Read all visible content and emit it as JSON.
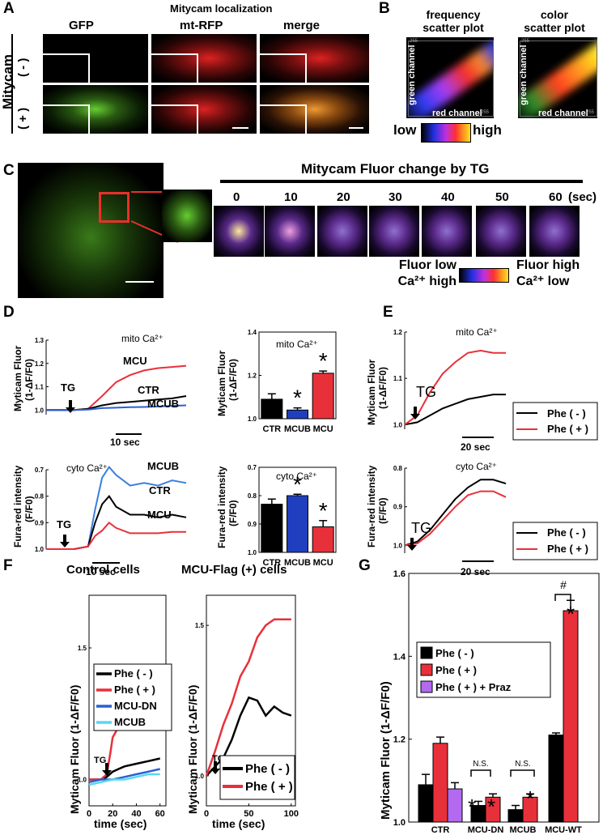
{
  "panelA": {
    "letter": "A",
    "title": "Mitycam localization",
    "col_labels": [
      "GFP",
      "mt-RFP",
      "merge"
    ],
    "row_group": "Mitycam",
    "row_labels": [
      "( - )",
      "( + )"
    ]
  },
  "panelB": {
    "letter": "B",
    "plot1_title": [
      "frequency",
      "scatter plot"
    ],
    "plot2_title": [
      "color",
      "scatter plot"
    ],
    "xlabel": "red channel",
    "ylabel": "green channel",
    "tick_start": "0",
    "tick_end": "255",
    "bar_low": "low",
    "bar_high": "high"
  },
  "panelC": {
    "letter": "C",
    "title": "Mitycam Fluor change by TG",
    "times": [
      "0",
      "10",
      "20",
      "30",
      "40",
      "50",
      "60"
    ],
    "unit": "(sec)",
    "legend_low": [
      "Fluor low",
      "Ca²⁺  high"
    ],
    "legend_high": [
      "Fluor high",
      "Ca²⁺  low"
    ]
  },
  "panelD": {
    "letter": "D",
    "mito_title": "mito Ca²⁺",
    "cyto_title": "cyto Ca²⁺",
    "mito_ylabel": [
      "Myticam Fluor",
      "(1-ΔF/F0)"
    ],
    "cyto_ylabel": [
      "Fura-red intensity",
      "(F/F0)"
    ],
    "tg": "TG",
    "scale_mito": "10 sec",
    "scale_cyto": "10 sec",
    "mito_ticks": [
      "1.0",
      "1.1",
      "1.2",
      "1.3"
    ],
    "cyto_ticks": [
      "1.0",
      "0.9",
      "0.8",
      "0.7"
    ],
    "mito_labels": [
      "MCU",
      "CTR",
      "MCUB"
    ],
    "cyto_labels": [
      "MCUB",
      "CTR",
      "MCU"
    ],
    "bar_mito_ticks": [
      "1.0",
      "1.2",
      "1.4"
    ],
    "bar_cyto_ticks": [
      "1.0",
      "0.9",
      "0.8",
      "0.7"
    ],
    "bar_cats": [
      "CTR",
      "MCUB",
      "MCU"
    ]
  },
  "panelE": {
    "letter": "E",
    "mito_title": "mito Ca²⁺",
    "cyto_title": "cyto Ca²⁺",
    "mito_ylabel": [
      "Myticam Fluor",
      "(1-ΔF/F0)"
    ],
    "cyto_ylabel": [
      "Fura-red intensity",
      "(F/F0)"
    ],
    "tg": "TG",
    "scale": "20 sec",
    "mito_ticks": [
      "1.0",
      "1.1",
      "1.2"
    ],
    "cyto_ticks": [
      "1.0",
      "0.9",
      "0.8"
    ],
    "legend": [
      "Phe ( - )",
      "Phe ( + )"
    ]
  },
  "panelF": {
    "letter": "F",
    "left_title": "Control cells",
    "right_title": "MCU-Flag (+) cells",
    "ylabel": "Myticam Fluor (1-ΔF/F0)",
    "xlabel": "time (sec)",
    "tg": "TG",
    "left_xticks": [
      "0",
      "20",
      "40",
      "60"
    ],
    "right_xticks": [
      "0",
      "50",
      "100"
    ],
    "left_yticks": [
      "1.0",
      "1.5"
    ],
    "right_yticks": [
      "1.0",
      "1.5"
    ],
    "left_legend": [
      "Phe ( - )",
      "Phe ( + )",
      "MCU-DN",
      "MCUB"
    ],
    "right_legend": [
      "Phe ( - )",
      "Phe ( + )"
    ]
  },
  "panelG": {
    "letter": "G",
    "ylabel": "Myticam Fluor (1-ΔF/F0)",
    "yticks": [
      "1.0",
      "1.2",
      "1.4",
      "1.6"
    ],
    "legend": [
      "Phe ( - )",
      "Phe ( + )",
      "Phe ( + ) + Praz"
    ],
    "ns": "N.S.",
    "hash": "#",
    "star": "*"
  },
  "chart_data": [
    {
      "type": "line",
      "panel": "D mito",
      "title": "mito Ca²⁺",
      "ylabel": "Myticam Fluor (1-ΔF/F0)",
      "ylim": [
        0.98,
        1.3
      ],
      "series": [
        {
          "name": "MCU",
          "x": [
            0,
            4,
            8,
            12,
            16,
            20,
            24,
            28,
            32,
            36,
            40
          ],
          "y": [
            1.0,
            1.0,
            1.0,
            1.005,
            1.06,
            1.12,
            1.15,
            1.17,
            1.18,
            1.185,
            1.19
          ],
          "color": "#e8303a"
        },
        {
          "name": "CTR",
          "x": [
            0,
            4,
            8,
            12,
            16,
            20,
            24,
            28,
            32,
            36,
            40
          ],
          "y": [
            1.0,
            1.0,
            1.0,
            1.005,
            1.02,
            1.03,
            1.035,
            1.04,
            1.045,
            1.05,
            1.06
          ],
          "color": "#000000"
        },
        {
          "name": "MCUB",
          "x": [
            0,
            4,
            8,
            12,
            16,
            20,
            24,
            28,
            32,
            36,
            40
          ],
          "y": [
            1.0,
            1.0,
            1.0,
            1.002,
            1.008,
            1.01,
            1.012,
            1.013,
            1.015,
            1.018,
            1.02
          ],
          "color": "#2a5fd6"
        }
      ]
    },
    {
      "type": "line",
      "panel": "D cyto",
      "title": "cyto Ca²⁺",
      "ylabel": "Fura-red intensity (F/F0)",
      "ylim": [
        1.0,
        0.7
      ],
      "series": [
        {
          "name": "MCUB",
          "x": [
            0,
            4,
            8,
            12,
            14,
            16,
            18,
            20,
            24,
            28,
            32,
            36,
            40
          ],
          "y": [
            1.0,
            1.0,
            1.0,
            0.99,
            0.85,
            0.73,
            0.69,
            0.72,
            0.76,
            0.75,
            0.76,
            0.74,
            0.75
          ],
          "color": "#3a7fe0"
        },
        {
          "name": "CTR",
          "x": [
            0,
            4,
            8,
            12,
            14,
            16,
            18,
            20,
            24,
            28,
            32,
            36,
            40
          ],
          "y": [
            1.0,
            1.0,
            1.0,
            0.99,
            0.9,
            0.83,
            0.8,
            0.84,
            0.87,
            0.87,
            0.88,
            0.87,
            0.88
          ],
          "color": "#000000"
        },
        {
          "name": "MCU",
          "x": [
            0,
            4,
            8,
            12,
            14,
            16,
            18,
            20,
            24,
            28,
            32,
            36,
            40
          ],
          "y": [
            1.0,
            1.0,
            1.0,
            0.99,
            0.95,
            0.93,
            0.9,
            0.92,
            0.94,
            0.94,
            0.94,
            0.935,
            0.935
          ],
          "color": "#e8303a"
        }
      ]
    },
    {
      "type": "bar",
      "panel": "D mito bars",
      "title": "mito Ca²⁺",
      "ylabel": "Myticam Fluor (1-ΔF/F0)",
      "categories": [
        "CTR",
        "MCUB",
        "MCU"
      ],
      "values": [
        1.09,
        1.04,
        1.21
      ],
      "errors": [
        0.025,
        0.01,
        0.01
      ],
      "significant": [
        false,
        true,
        true
      ],
      "colors": [
        "#000000",
        "#1f3fbf",
        "#e8303a"
      ],
      "ylim": [
        1.0,
        1.4
      ]
    },
    {
      "type": "bar",
      "panel": "D cyto bars",
      "title": "cyto Ca²⁺",
      "ylabel": "Fura-red intensity (F/F0)",
      "categories": [
        "CTR",
        "MCUB",
        "MCU"
      ],
      "values": [
        0.83,
        0.8,
        0.91
      ],
      "errors": [
        0.018,
        0.005,
        0.022
      ],
      "significant": [
        false,
        true,
        true
      ],
      "colors": [
        "#000000",
        "#1f3fbf",
        "#e8303a"
      ],
      "ylim": [
        1.0,
        0.7
      ]
    },
    {
      "type": "line",
      "panel": "E mito",
      "title": "mito Ca²⁺",
      "ylabel": "Myticam Fluor (1-ΔF/F0)",
      "ylim": [
        0.99,
        1.2
      ],
      "series": [
        {
          "name": "Phe ( - )",
          "x": [
            0,
            10,
            20,
            30,
            40,
            50,
            60,
            70,
            80
          ],
          "y": [
            1.0,
            1.005,
            1.02,
            1.035,
            1.045,
            1.055,
            1.06,
            1.065,
            1.065
          ],
          "color": "#000000"
        },
        {
          "name": "Phe ( + )",
          "x": [
            0,
            10,
            20,
            30,
            40,
            50,
            60,
            70,
            80
          ],
          "y": [
            1.0,
            1.02,
            1.07,
            1.11,
            1.135,
            1.155,
            1.16,
            1.155,
            1.155
          ],
          "color": "#e8303a"
        }
      ]
    },
    {
      "type": "line",
      "panel": "E cyto",
      "title": "cyto Ca²⁺",
      "ylabel": "Fura-red intensity (F/F0)",
      "ylim": [
        1.02,
        0.8
      ],
      "series": [
        {
          "name": "Phe ( - )",
          "x": [
            0,
            10,
            20,
            30,
            40,
            50,
            60,
            70,
            80
          ],
          "y": [
            1.0,
            0.99,
            0.96,
            0.92,
            0.88,
            0.85,
            0.83,
            0.83,
            0.84
          ],
          "color": "#000000"
        },
        {
          "name": "Phe ( + )",
          "x": [
            0,
            10,
            20,
            30,
            40,
            50,
            60,
            70,
            80
          ],
          "y": [
            1.0,
            0.995,
            0.97,
            0.935,
            0.9,
            0.87,
            0.86,
            0.86,
            0.875
          ],
          "color": "#e8303a"
        }
      ]
    },
    {
      "type": "line",
      "panel": "F control",
      "title": "Control cells",
      "xlabel": "time (sec)",
      "ylabel": "Myticam Fluor (1-ΔF/F0)",
      "xlim": [
        0,
        65
      ],
      "ylim": [
        0.9,
        1.7
      ],
      "series": [
        {
          "name": "Phe ( - )",
          "x": [
            0,
            10,
            15,
            20,
            25,
            30,
            40,
            50,
            60
          ],
          "y": [
            1.0,
            1.0,
            1.01,
            1.03,
            1.04,
            1.05,
            1.06,
            1.07,
            1.08
          ],
          "color": "#000000"
        },
        {
          "name": "Phe ( + )",
          "x": [
            0,
            10,
            15,
            18,
            20,
            25,
            30,
            40,
            50,
            60
          ],
          "y": [
            1.0,
            1.0,
            1.02,
            1.1,
            1.16,
            1.2,
            1.21,
            1.21,
            1.21,
            1.21
          ],
          "color": "#e8303a"
        },
        {
          "name": "MCU-DN",
          "x": [
            0,
            10,
            20,
            30,
            40,
            50,
            60
          ],
          "y": [
            0.99,
            1.0,
            1.0,
            1.01,
            1.02,
            1.03,
            1.04
          ],
          "color": "#2a5fd6"
        },
        {
          "name": "MCUB",
          "x": [
            0,
            10,
            20,
            30,
            40,
            50,
            60
          ],
          "y": [
            0.98,
            0.99,
            1.0,
            1.0,
            1.01,
            1.02,
            1.02
          ],
          "color": "#55d8f0"
        }
      ]
    },
    {
      "type": "line",
      "panel": "F MCU-Flag",
      "title": "MCU-Flag (+) cells",
      "xlabel": "time (sec)",
      "ylabel": "Myticam Fluor (1-ΔF/F0)",
      "xlim": [
        0,
        105
      ],
      "ylim": [
        0.9,
        1.6
      ],
      "series": [
        {
          "name": "Phe ( - )",
          "x": [
            0,
            10,
            20,
            30,
            40,
            50,
            60,
            70,
            80,
            90,
            100
          ],
          "y": [
            1.0,
            1.03,
            1.06,
            1.12,
            1.2,
            1.26,
            1.25,
            1.2,
            1.23,
            1.21,
            1.2
          ],
          "color": "#000000"
        },
        {
          "name": "Phe ( + )",
          "x": [
            0,
            10,
            20,
            30,
            40,
            50,
            60,
            70,
            80,
            90,
            100
          ],
          "y": [
            1.0,
            1.08,
            1.17,
            1.24,
            1.33,
            1.38,
            1.46,
            1.5,
            1.52,
            1.52,
            1.52
          ],
          "color": "#e8303a"
        }
      ]
    },
    {
      "type": "bar",
      "panel": "G",
      "ylabel": "Myticam Fluor (1-ΔF/F0)",
      "ylim": [
        1.0,
        1.6
      ],
      "categories": [
        "CTR",
        "MCU-DN",
        "MCUB",
        "MCU-WT"
      ],
      "series": [
        {
          "name": "Phe ( - )",
          "values": [
            1.09,
            1.04,
            1.03,
            1.21
          ],
          "errors": [
            0.025,
            0.01,
            0.01,
            0.005
          ],
          "color": "#000000"
        },
        {
          "name": "Phe ( + )",
          "values": [
            1.19,
            1.06,
            1.06,
            1.51
          ],
          "errors": [
            0.015,
            0.008,
            0.008,
            0.025
          ],
          "color": "#e8303a"
        },
        {
          "name": "Phe ( + ) + Praz",
          "values": [
            1.08,
            null,
            null,
            null
          ],
          "errors": [
            0.015,
            null,
            null,
            null
          ],
          "color": "#b36af0"
        }
      ]
    }
  ]
}
